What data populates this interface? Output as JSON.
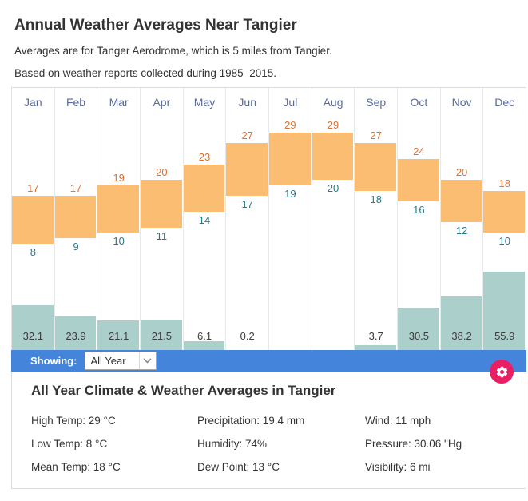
{
  "header": {
    "title": "Annual Weather Averages Near Tangier",
    "subtitle1": "Averages are for Tanger Aerodrome, which is 5 miles from Tangier.",
    "subtitle2": "Based on weather reports collected during 1985–2015."
  },
  "chart_data": {
    "type": "bar",
    "title": "Annual Weather Averages Near Tangier",
    "categories": [
      "Jan",
      "Feb",
      "Mar",
      "Apr",
      "May",
      "Jun",
      "Jul",
      "Aug",
      "Sep",
      "Oct",
      "Nov",
      "Dec"
    ],
    "series": [
      {
        "name": "High Temp (°C)",
        "values": [
          17,
          17,
          19,
          20,
          23,
          27,
          29,
          29,
          27,
          24,
          20,
          18
        ]
      },
      {
        "name": "Low Temp (°C)",
        "values": [
          8,
          9,
          10,
          11,
          14,
          17,
          19,
          20,
          18,
          16,
          12,
          10
        ]
      },
      {
        "name": "Precipitation (mm)",
        "values": [
          32.1,
          23.9,
          21.1,
          21.5,
          6.1,
          0.2,
          null,
          null,
          3.7,
          30.5,
          38.2,
          55.9
        ]
      }
    ],
    "value_labels": "shown above/below temperature bars and at column bottom for precipitation",
    "axes": "none (floating bar chart, no axis ticks shown)",
    "colors": {
      "temp_bar": "#FABD71",
      "precip_bar": "#ABCFCB",
      "high_label": "#E2702D",
      "low_label": "#27798A",
      "month_label": "#5A6B9B",
      "precip_label": "#3C3C3C"
    }
  },
  "controls": {
    "showing_label": "Showing:",
    "selected_period": "All Year",
    "bar_color": "#4485DB",
    "gear_color": "#E91E63"
  },
  "summary": {
    "title": "All Year Climate & Weather Averages in Tangier",
    "stats": [
      {
        "label": "High Temp",
        "value": "29 °C"
      },
      {
        "label": "Precipitation",
        "value": "19.4 mm"
      },
      {
        "label": "Wind",
        "value": "11 mph"
      },
      {
        "label": "Low Temp",
        "value": "8 °C"
      },
      {
        "label": "Humidity",
        "value": "74%"
      },
      {
        "label": "Pressure",
        "value": "30.06 \"Hg"
      },
      {
        "label": "Mean Temp",
        "value": "18 °C"
      },
      {
        "label": "Dew Point",
        "value": "13 °C"
      },
      {
        "label": "Visibility",
        "value": "6 mi"
      }
    ]
  }
}
